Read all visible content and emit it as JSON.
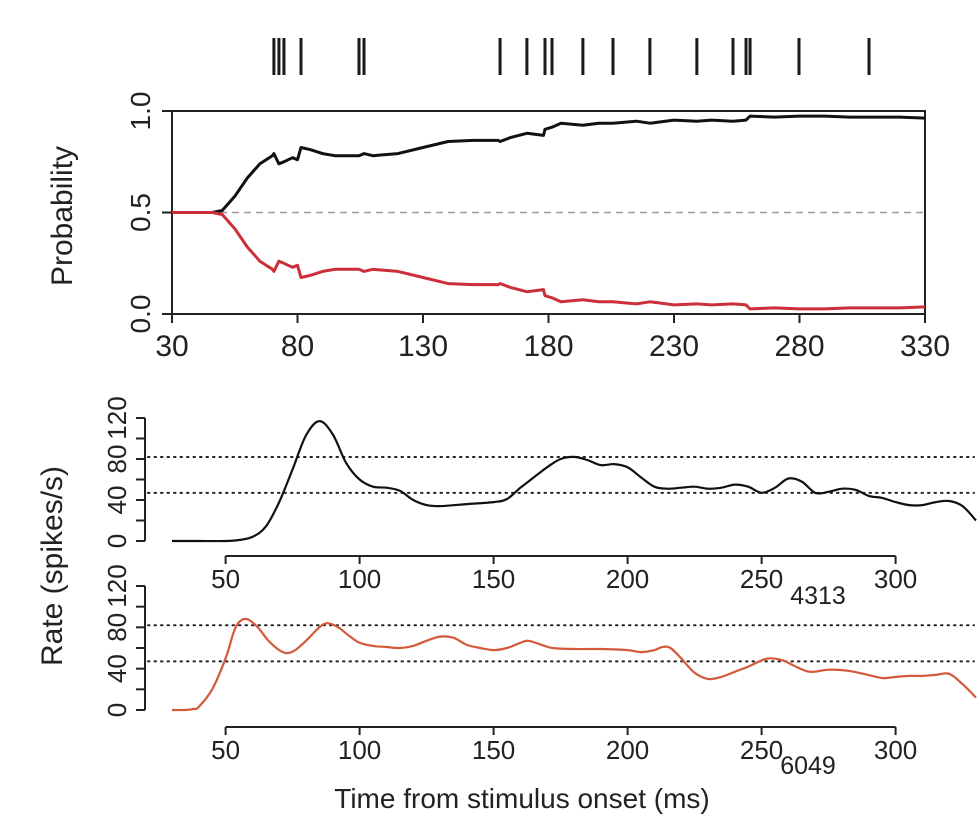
{
  "chart_data": [
    {
      "type": "raster",
      "name": "spike-raster",
      "xlim": [
        30,
        330
      ],
      "spike_times_ms": [
        70.6,
        72.6,
        74.6,
        81.4,
        104.5,
        106.5,
        160.7,
        171.4,
        178.6,
        181.4,
        193.7,
        205.7,
        220.4,
        239.1,
        253.5,
        258.7,
        260.3,
        279.8,
        307.7
      ]
    },
    {
      "type": "line",
      "name": "probability-plot",
      "title": "",
      "xlabel": "",
      "ylabel": "Probability",
      "xlim": [
        30,
        330
      ],
      "ylim": [
        0,
        1
      ],
      "xticks": [
        30,
        80,
        130,
        180,
        230,
        280,
        330
      ],
      "yticks": [
        "0.0",
        "0.5",
        "1.0"
      ],
      "reference_line": {
        "y": 0.5,
        "style": "dashed",
        "color": "#999999"
      },
      "series": [
        {
          "name": "preferred",
          "color": "#111111",
          "x": [
            30,
            40,
            46,
            50,
            55,
            60,
            65,
            70,
            70.6,
            72.6,
            74.6,
            78,
            80,
            81.4,
            85,
            90,
            95,
            100,
            104.5,
            106.5,
            110,
            120,
            130,
            140,
            150,
            160,
            160.7,
            165,
            171.4,
            178,
            178.6,
            181.4,
            185,
            193.7,
            200,
            205.7,
            215,
            220.4,
            230,
            239.1,
            245,
            253.5,
            258.7,
            260.3,
            270,
            279.8,
            290,
            300,
            307.7,
            320,
            330
          ],
          "y": [
            0.5,
            0.5,
            0.5,
            0.51,
            0.58,
            0.67,
            0.74,
            0.78,
            0.79,
            0.74,
            0.75,
            0.77,
            0.76,
            0.82,
            0.81,
            0.79,
            0.78,
            0.78,
            0.78,
            0.79,
            0.78,
            0.79,
            0.82,
            0.85,
            0.855,
            0.855,
            0.85,
            0.87,
            0.89,
            0.88,
            0.91,
            0.92,
            0.94,
            0.93,
            0.94,
            0.94,
            0.95,
            0.94,
            0.955,
            0.95,
            0.955,
            0.95,
            0.955,
            0.975,
            0.97,
            0.975,
            0.975,
            0.97,
            0.97,
            0.97,
            0.965
          ]
        },
        {
          "name": "non-preferred",
          "color": "#cc2f3a",
          "x": [
            30,
            40,
            46,
            50,
            55,
            60,
            65,
            70,
            70.6,
            72.6,
            74.6,
            78,
            80,
            81.4,
            85,
            90,
            95,
            100,
            104.5,
            106.5,
            110,
            120,
            130,
            140,
            150,
            160,
            160.7,
            165,
            171.4,
            178,
            178.6,
            181.4,
            185,
            193.7,
            200,
            205.7,
            215,
            220.4,
            230,
            239.1,
            245,
            253.5,
            258.7,
            260.3,
            270,
            279.8,
            290,
            300,
            307.7,
            320,
            330
          ],
          "y": [
            0.5,
            0.5,
            0.5,
            0.49,
            0.42,
            0.33,
            0.26,
            0.22,
            0.21,
            0.26,
            0.25,
            0.23,
            0.24,
            0.18,
            0.19,
            0.21,
            0.22,
            0.22,
            0.22,
            0.21,
            0.22,
            0.21,
            0.18,
            0.15,
            0.145,
            0.145,
            0.15,
            0.13,
            0.11,
            0.12,
            0.09,
            0.08,
            0.06,
            0.07,
            0.06,
            0.06,
            0.05,
            0.06,
            0.045,
            0.05,
            0.045,
            0.05,
            0.045,
            0.025,
            0.03,
            0.025,
            0.025,
            0.03,
            0.03,
            0.03,
            0.035
          ]
        }
      ]
    },
    {
      "type": "line",
      "name": "rate-plot-4313",
      "annotation": "4313",
      "xlim": [
        30,
        330
      ],
      "ylim": [
        0,
        120
      ],
      "xticks": [
        50,
        100,
        150,
        200,
        250,
        300
      ],
      "yticks": [
        0,
        40,
        80,
        120
      ],
      "ytick_minor": [
        20,
        60,
        100
      ],
      "reference_lines": [
        {
          "y": 82,
          "style": "dotted"
        },
        {
          "y": 47,
          "style": "dotted"
        }
      ],
      "series": [
        {
          "name": "cell-4313",
          "color": "#111111",
          "x": [
            30,
            40,
            50,
            55,
            60,
            65,
            70,
            75,
            80,
            85,
            90,
            95,
            100,
            105,
            110,
            115,
            120,
            125,
            130,
            140,
            150,
            155,
            160,
            165,
            170,
            175,
            180,
            185,
            190,
            195,
            200,
            205,
            210,
            215,
            220,
            225,
            230,
            235,
            240,
            245,
            250,
            255,
            260,
            265,
            270,
            275,
            280,
            285,
            290,
            295,
            300,
            305,
            310,
            315,
            320,
            325,
            330
          ],
          "y": [
            0,
            0,
            0,
            1,
            4,
            14,
            38,
            70,
            103,
            117,
            104,
            76,
            60,
            53,
            52,
            49,
            40,
            35,
            34,
            36,
            38,
            41,
            52,
            62,
            72,
            80,
            82,
            79,
            74,
            75,
            72,
            62,
            53,
            51,
            52,
            53,
            51,
            52,
            55,
            53,
            47,
            52,
            61,
            58,
            47,
            48,
            51,
            50,
            44,
            42,
            38,
            35,
            35,
            38,
            39,
            34,
            20
          ]
        }
      ]
    },
    {
      "type": "line",
      "name": "rate-plot-6049",
      "annotation": "6049",
      "xlabel": "Time from stimulus onset (ms)",
      "ylabel": "Rate (spikes/s)",
      "xlim": [
        30,
        330
      ],
      "ylim": [
        0,
        120
      ],
      "xticks": [
        50,
        100,
        150,
        200,
        250,
        300
      ],
      "yticks": [
        0,
        40,
        80,
        120
      ],
      "ytick_minor": [
        20,
        60,
        100
      ],
      "reference_lines": [
        {
          "y": 82,
          "style": "dotted"
        },
        {
          "y": 47,
          "style": "dotted"
        }
      ],
      "series": [
        {
          "name": "cell-6049",
          "color": "#d4593a",
          "x": [
            30,
            35,
            38,
            40,
            45,
            50,
            53,
            55,
            58,
            62,
            66,
            70,
            73,
            76,
            80,
            85,
            88,
            92,
            96,
            100,
            105,
            110,
            115,
            120,
            125,
            130,
            135,
            140,
            145,
            150,
            155,
            160,
            163,
            168,
            172,
            180,
            190,
            200,
            205,
            210,
            213,
            216,
            220,
            225,
            230,
            235,
            240,
            245,
            250,
            253,
            258,
            262,
            268,
            275,
            282,
            288,
            295,
            300,
            305,
            310,
            315,
            320,
            325,
            330
          ],
          "y": [
            0,
            0,
            1,
            3,
            20,
            50,
            75,
            85,
            88,
            80,
            67,
            58,
            55,
            58,
            67,
            80,
            84,
            80,
            72,
            65,
            62,
            61,
            60,
            62,
            67,
            71,
            70,
            63,
            60,
            58,
            60,
            65,
            67,
            63,
            60,
            59,
            59,
            58,
            56,
            58,
            61,
            60,
            50,
            36,
            30,
            32,
            37,
            42,
            48,
            50,
            48,
            43,
            37,
            39,
            38,
            35,
            31,
            32,
            33,
            33,
            34,
            35,
            25,
            12
          ]
        }
      ]
    }
  ],
  "labels": {
    "prob_ylabel": "Probability",
    "rate_ylabel": "Rate (spikes/s)",
    "xlabel": "Time from stimulus onset (ms)",
    "cell_a": "4313",
    "cell_b": "6049"
  }
}
